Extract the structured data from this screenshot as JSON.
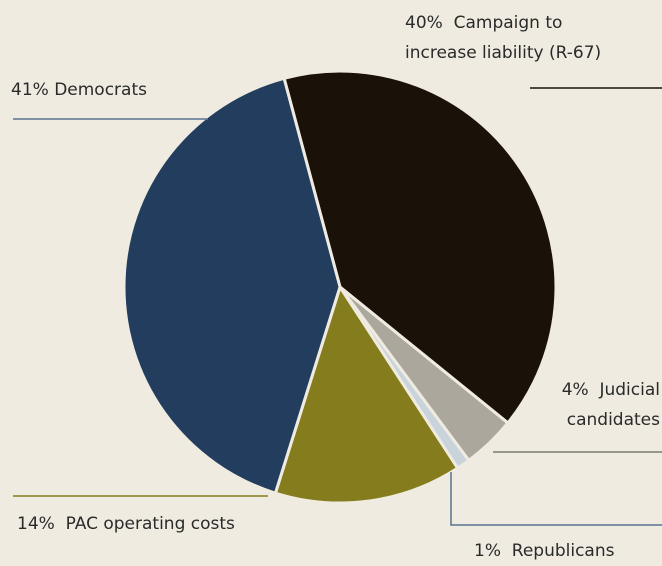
{
  "chart_data": {
    "type": "pie",
    "title": "",
    "slices": [
      {
        "label": "40%  Campaign to\nincrease liability (R-67)",
        "value": 40,
        "color": "#1a1209"
      },
      {
        "label": "4%  Judicial\ncandidates",
        "value": 4,
        "color": "#aba79c"
      },
      {
        "label": "1%  Republicans",
        "value": 1,
        "color": "#c8d3dc"
      },
      {
        "label": "14%  PAC operating costs",
        "value": 14,
        "color": "#857d1d"
      },
      {
        "label": "41% Democrats",
        "value": 41,
        "color": "#223d5e"
      }
    ],
    "start_angle_deg": -15,
    "direction": "clockwise",
    "slice_border_color": "#efebe0",
    "leader_colors": [
      "#1a1209",
      "#7a7a74",
      "#5a7390",
      "#857d1d",
      "#5a7390"
    ],
    "legend": "none"
  }
}
